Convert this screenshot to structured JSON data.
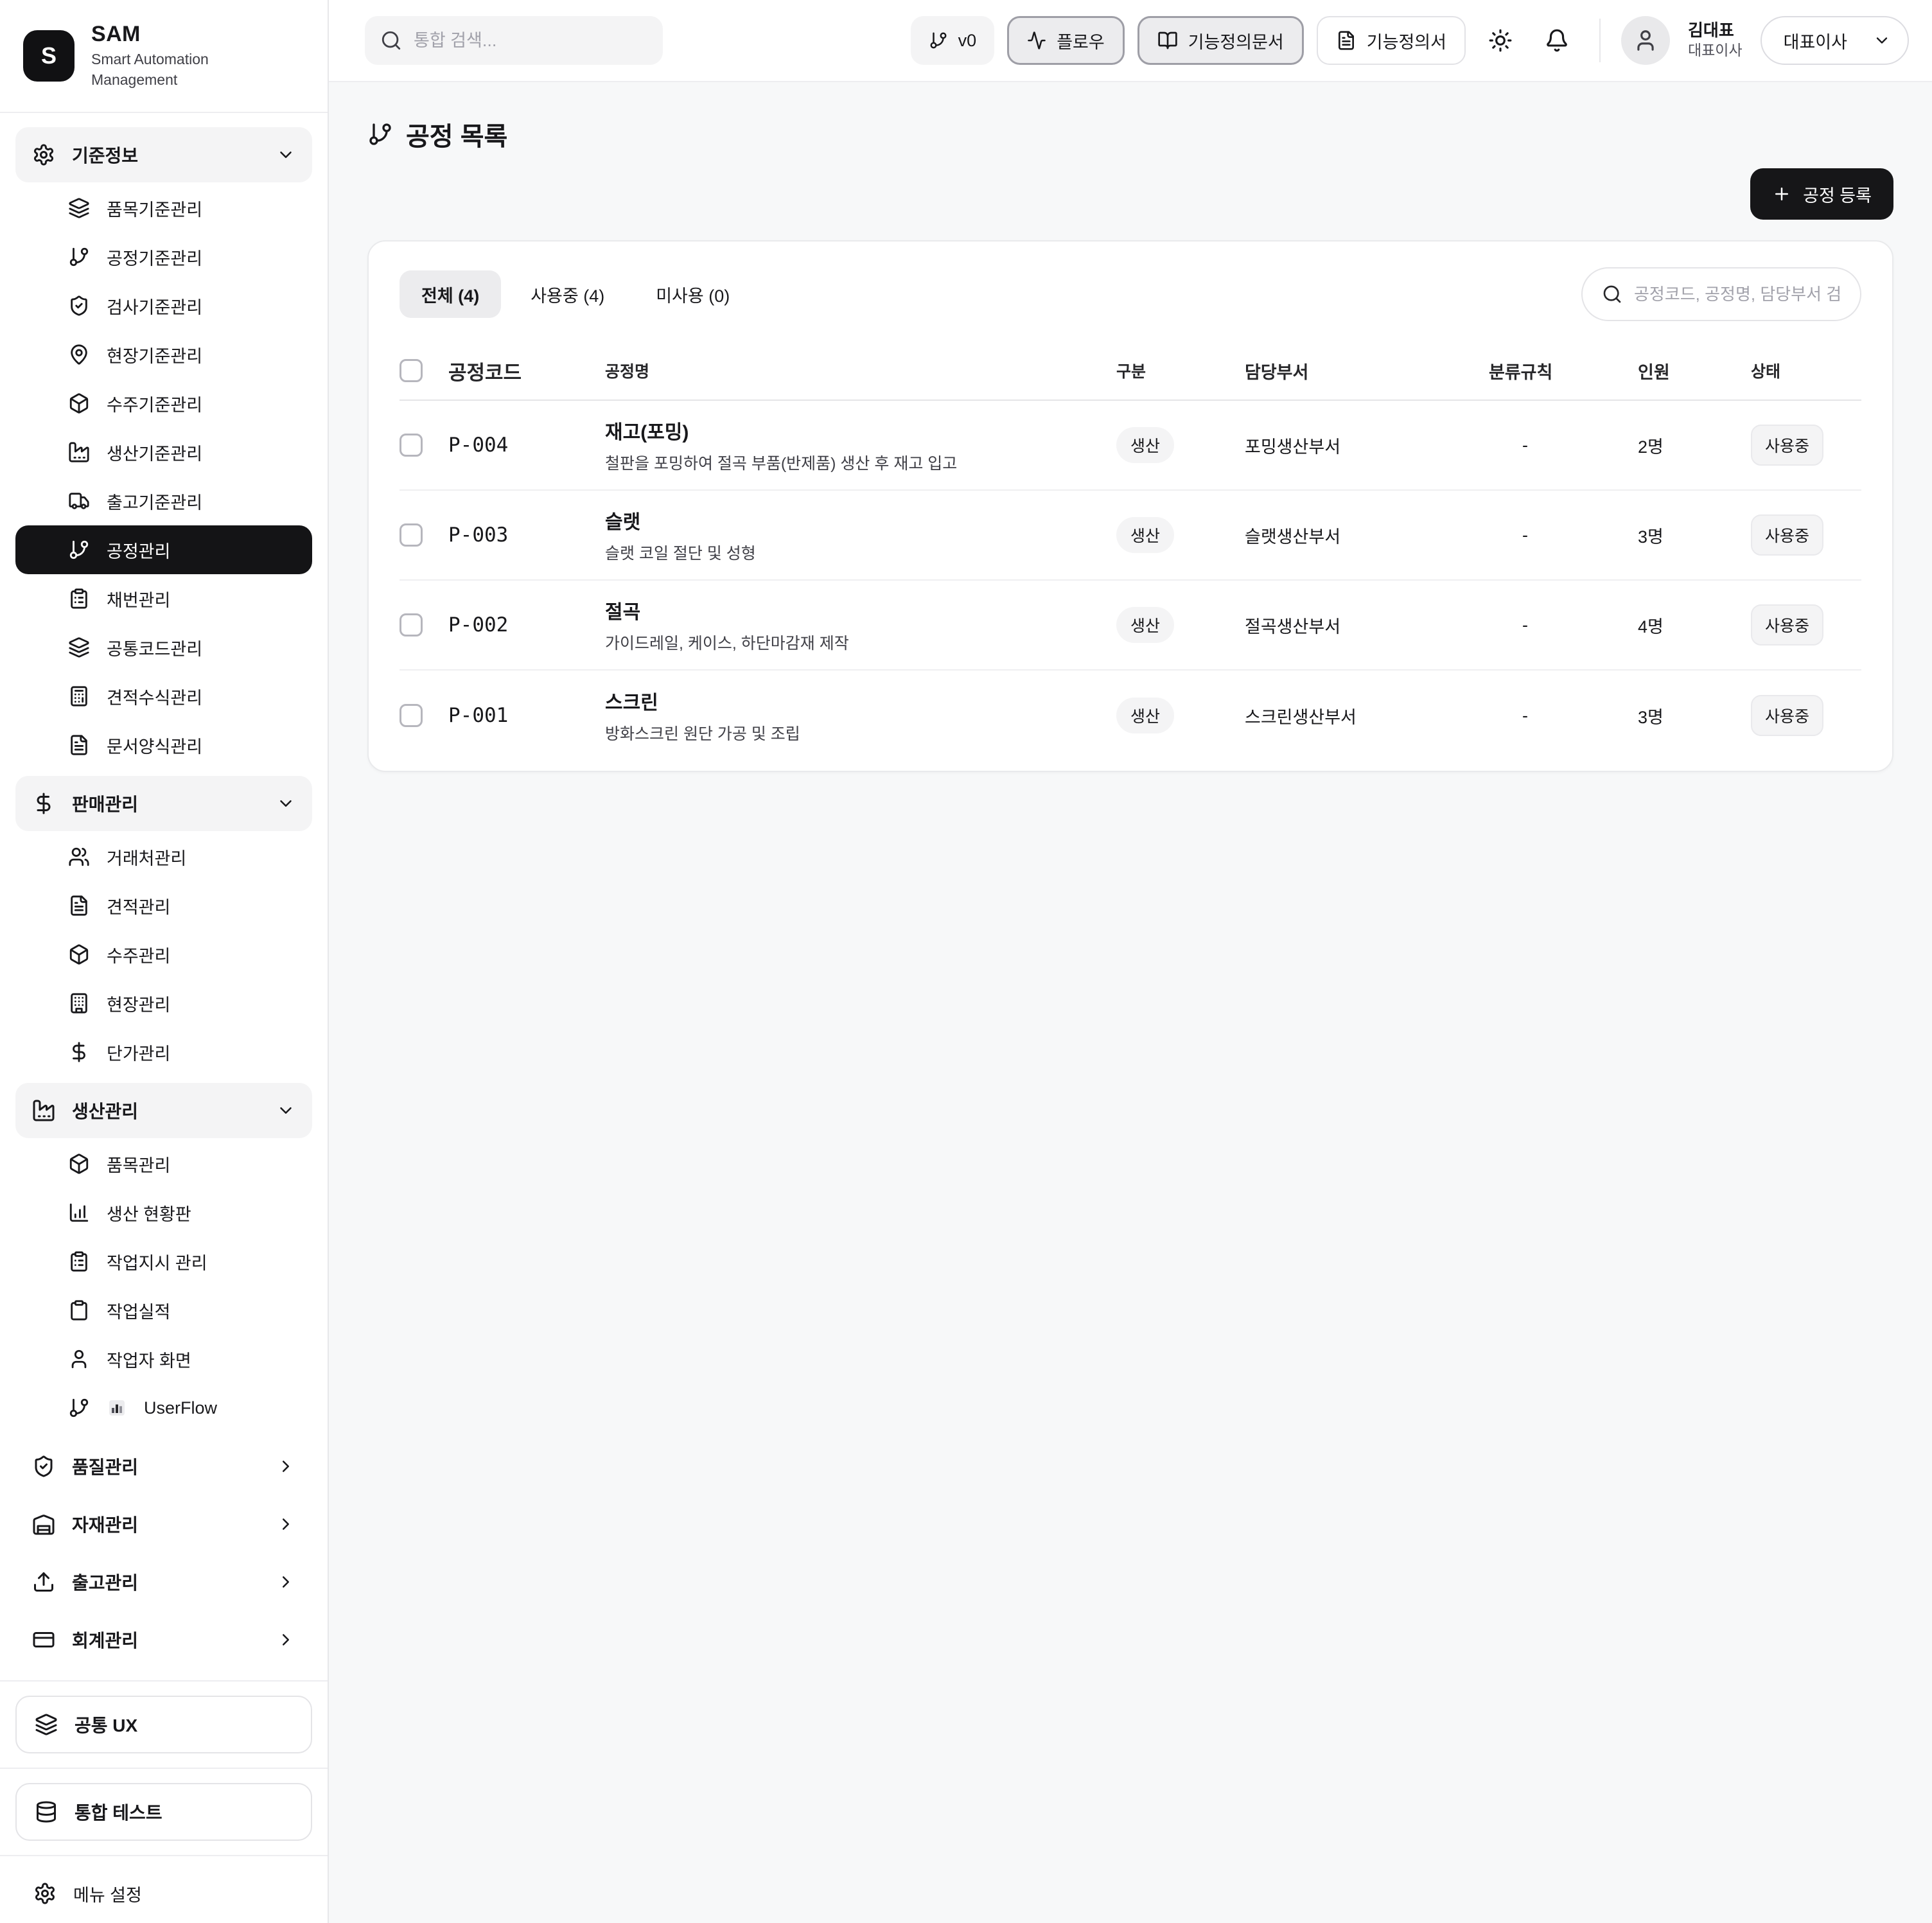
{
  "brand": {
    "initial": "S",
    "name": "SAM",
    "subtitle": "Smart Automation Management"
  },
  "header": {
    "search_placeholder": "통합 검색...",
    "buttons": [
      {
        "label": "v0",
        "icon": "git-branch"
      },
      {
        "label": "플로우",
        "icon": "activity"
      },
      {
        "label": "기능정의문서",
        "icon": "book-open"
      },
      {
        "label": "기능정의서",
        "icon": "file-text"
      }
    ],
    "user": {
      "name": "김대표",
      "role": "대표이사"
    },
    "role_select": "대표이사"
  },
  "sidebar": {
    "sections": [
      {
        "label": "기준정보",
        "icon": "gear",
        "state": "expanded",
        "items": [
          {
            "label": "품목기준관리",
            "icon": "layers"
          },
          {
            "label": "공정기준관리",
            "icon": "git-branch"
          },
          {
            "label": "검사기준관리",
            "icon": "shield-check"
          },
          {
            "label": "현장기준관리",
            "icon": "map-pin"
          },
          {
            "label": "수주기준관리",
            "icon": "package"
          },
          {
            "label": "생산기준관리",
            "icon": "factory"
          },
          {
            "label": "출고기준관리",
            "icon": "truck"
          },
          {
            "label": "공정관리",
            "icon": "git-branch",
            "selected": true
          },
          {
            "label": "채번관리",
            "icon": "clipboard-list"
          },
          {
            "label": "공통코드관리",
            "icon": "layers"
          },
          {
            "label": "견적수식관리",
            "icon": "calculator"
          },
          {
            "label": "문서양식관리",
            "icon": "file-text"
          }
        ]
      },
      {
        "label": "판매관리",
        "icon": "dollar-sign",
        "state": "expanded",
        "items": [
          {
            "label": "거래처관리",
            "icon": "users"
          },
          {
            "label": "견적관리",
            "icon": "file-text"
          },
          {
            "label": "수주관리",
            "icon": "package"
          },
          {
            "label": "현장관리",
            "icon": "building"
          },
          {
            "label": "단가관리",
            "icon": "dollar-sign"
          }
        ]
      },
      {
        "label": "생산관리",
        "icon": "factory",
        "state": "expanded",
        "items": [
          {
            "label": "품목관리",
            "icon": "package"
          },
          {
            "label": "생산 현황판",
            "icon": "bar-chart"
          },
          {
            "label": "작업지시 관리",
            "icon": "clipboard-list"
          },
          {
            "label": "작업실적",
            "icon": "clipboard"
          },
          {
            "label": "작업자 화면",
            "icon": "user"
          },
          {
            "label": "UserFlow",
            "icon": "git-branch",
            "prefix_icon": "mini-bar-chart"
          }
        ]
      },
      {
        "label": "품질관리",
        "icon": "shield-check",
        "state": "collapsed",
        "items": []
      },
      {
        "label": "자재관리",
        "icon": "warehouse",
        "state": "collapsed",
        "items": []
      },
      {
        "label": "출고관리",
        "icon": "upload",
        "state": "collapsed",
        "items": []
      },
      {
        "label": "회계관리",
        "icon": "credit-card",
        "state": "collapsed",
        "items": []
      }
    ],
    "footer_boxes": [
      {
        "label": "공통 UX",
        "icon": "layers"
      },
      {
        "label": "통합 테스트",
        "icon": "database"
      }
    ],
    "settings": {
      "label": "메뉴 설정",
      "icon": "gear"
    }
  },
  "page": {
    "title": "공정 목록",
    "register_button": "공정 등록",
    "tabs": [
      {
        "label": "전체 (4)",
        "active": true
      },
      {
        "label": "사용중 (4)",
        "active": false
      },
      {
        "label": "미사용 (0)",
        "active": false
      }
    ],
    "search_placeholder": "공정코드, 공정명, 담당부서 검색",
    "table": {
      "columns": [
        "공정코드",
        "공정명",
        "구분",
        "담당부서",
        "분류규칙",
        "인원",
        "상태"
      ],
      "rows": [
        {
          "code": "P-004",
          "name": "재고(포밍)",
          "desc": "철판을 포밍하여 절곡 부품(반제품) 생산 후 재고 입고",
          "type": "생산",
          "dept": "포밍생산부서",
          "rule": "-",
          "people": "2명",
          "status": "사용중"
        },
        {
          "code": "P-003",
          "name": "슬랫",
          "desc": "슬랫 코일 절단 및 성형",
          "type": "생산",
          "dept": "슬랫생산부서",
          "rule": "-",
          "people": "3명",
          "status": "사용중"
        },
        {
          "code": "P-002",
          "name": "절곡",
          "desc": "가이드레일, 케이스, 하단마감재 제작",
          "type": "생산",
          "dept": "절곡생산부서",
          "rule": "-",
          "people": "4명",
          "status": "사용중"
        },
        {
          "code": "P-001",
          "name": "스크린",
          "desc": "방화스크린 원단 가공 및 조립",
          "type": "생산",
          "dept": "스크린생산부서",
          "rule": "-",
          "people": "3명",
          "status": "사용중"
        }
      ]
    }
  }
}
